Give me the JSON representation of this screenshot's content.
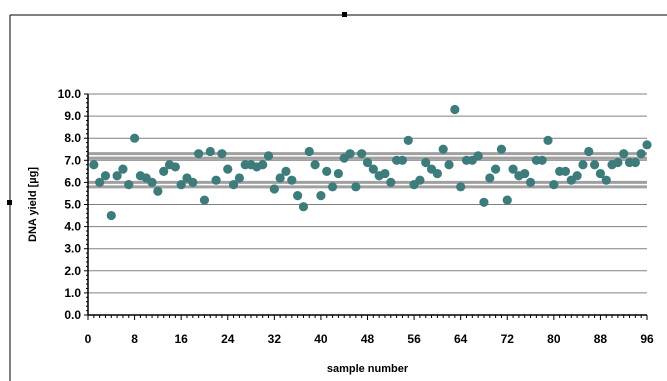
{
  "chart_data": {
    "type": "scatter",
    "title": "",
    "xlabel": "sample number",
    "ylabel": "DNA yield [µg]",
    "xlim": [
      0,
      96
    ],
    "ylim": [
      0,
      10
    ],
    "x_ticks": [
      "0",
      "8",
      "16",
      "24",
      "32",
      "40",
      "48",
      "56",
      "64",
      "72",
      "80",
      "88",
      "96"
    ],
    "y_ticks": [
      "0.0",
      "1.0",
      "2.0",
      "3.0",
      "4.0",
      "5.0",
      "6.0",
      "7.0",
      "8.0",
      "9.0",
      "10.0"
    ],
    "reference_lines": [
      5.8,
      6.0,
      7.1,
      7.3
    ],
    "grid": "horizontal",
    "legend": "none",
    "colors": {
      "marker": "#3E7B7B",
      "reference_line": "#A0A0A0",
      "grid": "#808080"
    },
    "series": [
      {
        "x": [
          1,
          2,
          3,
          4,
          5,
          6,
          7,
          8,
          9,
          10,
          11,
          12,
          13,
          14,
          15,
          16,
          17,
          18,
          19,
          20,
          21,
          22,
          23,
          24,
          25,
          26,
          27,
          28,
          29,
          30,
          31,
          32,
          33,
          34,
          35,
          36,
          37,
          38,
          39,
          40,
          41,
          42,
          43,
          44,
          45,
          46,
          47,
          48,
          49,
          50,
          51,
          52,
          53,
          54,
          55,
          56,
          57,
          58,
          59,
          60,
          61,
          62,
          63,
          64,
          65,
          66,
          67,
          68,
          69,
          70,
          71,
          72,
          73,
          74,
          75,
          76,
          77,
          78,
          79,
          80,
          81,
          82,
          83,
          84,
          85,
          86,
          87,
          88,
          89,
          90,
          91,
          92,
          93,
          94,
          95,
          96
        ],
        "y": [
          6.8,
          6.0,
          6.3,
          4.5,
          6.3,
          6.6,
          5.9,
          8.0,
          6.3,
          6.2,
          6.0,
          5.6,
          6.5,
          6.8,
          6.7,
          5.9,
          6.2,
          6.0,
          7.3,
          5.2,
          7.4,
          6.1,
          7.3,
          6.6,
          5.9,
          6.2,
          6.8,
          6.8,
          6.7,
          6.8,
          7.2,
          5.7,
          6.2,
          6.5,
          6.1,
          5.4,
          4.9,
          7.4,
          6.8,
          5.4,
          6.5,
          5.8,
          6.4,
          7.1,
          7.3,
          5.8,
          7.3,
          6.9,
          6.6,
          6.3,
          6.4,
          6.0,
          7.0,
          7.0,
          7.9,
          5.9,
          6.1,
          6.9,
          6.6,
          6.4,
          7.5,
          6.8,
          9.3,
          5.8,
          7.0,
          7.0,
          7.2,
          5.1,
          6.2,
          6.6,
          7.5,
          5.2,
          6.6,
          6.3,
          6.4,
          6.0,
          7.0,
          7.0,
          7.9,
          5.9,
          6.5,
          6.5,
          6.1,
          6.3,
          6.8,
          7.4,
          6.8,
          6.4,
          6.1,
          6.8,
          6.9,
          7.3,
          6.9,
          6.9,
          7.3,
          7.7
        ]
      }
    ]
  }
}
